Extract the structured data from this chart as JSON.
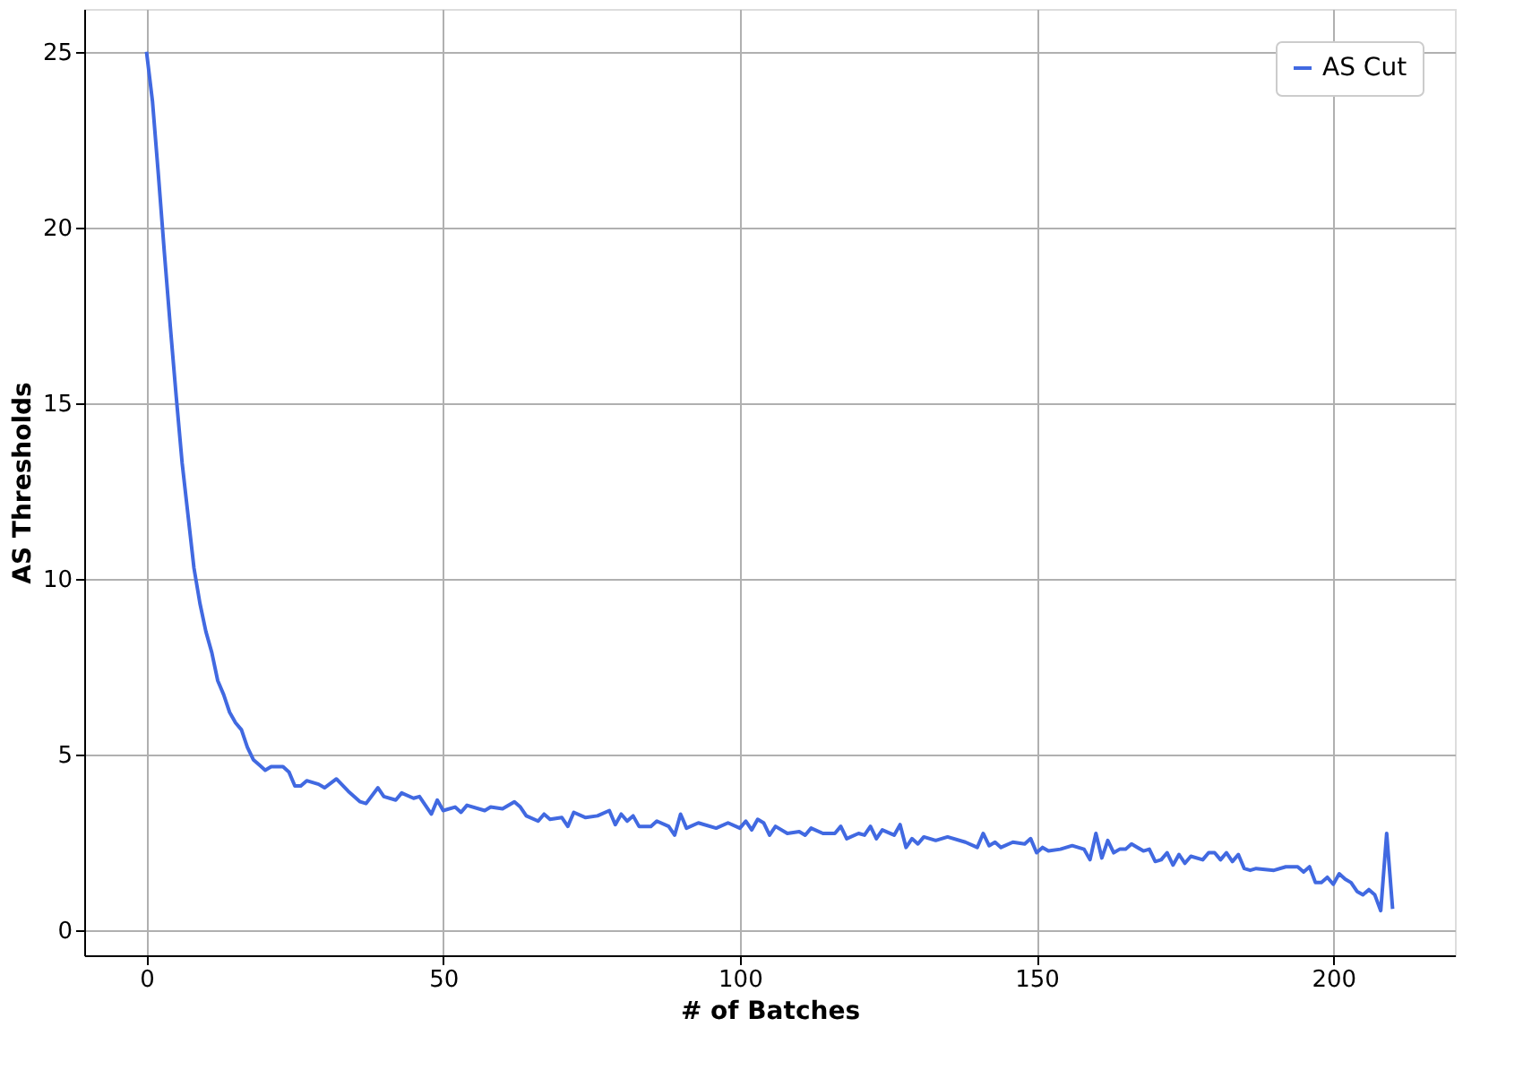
{
  "chart_data": {
    "type": "line",
    "xlabel": "# of Batches",
    "ylabel": "AS Thresholds",
    "xlim": [
      -10.5,
      220.5
    ],
    "ylim": [
      -0.72,
      26.22
    ],
    "xticks": [
      0,
      50,
      100,
      150,
      200
    ],
    "yticks": [
      0,
      5,
      10,
      15,
      20,
      25
    ],
    "grid": true,
    "legend": "top right",
    "line_style": "solid",
    "series": [
      {
        "name": "AS Cut",
        "color": "#4169e1",
        "x": [
          0,
          1,
          2,
          3,
          4,
          5,
          6,
          7,
          8,
          9,
          10,
          11,
          12,
          13,
          14,
          15,
          16,
          17,
          18,
          19,
          20,
          21,
          23,
          24,
          25,
          26,
          27,
          29,
          30,
          32,
          34,
          36,
          37,
          39,
          40,
          42,
          43,
          45,
          46,
          48,
          49,
          50,
          52,
          53,
          54,
          57,
          58,
          60,
          62,
          63,
          64,
          66,
          67,
          68,
          70,
          71,
          72,
          74,
          76,
          78,
          79,
          80,
          81,
          82,
          83,
          85,
          86,
          88,
          89,
          90,
          91,
          93,
          96,
          98,
          100,
          101,
          102,
          103,
          104,
          105,
          106,
          108,
          110,
          111,
          112,
          114,
          116,
          117,
          118,
          120,
          121,
          122,
          123,
          124,
          126,
          127,
          128,
          129,
          130,
          131,
          133,
          135,
          138,
          140,
          141,
          142,
          143,
          144,
          146,
          148,
          149,
          150,
          151,
          152,
          154,
          156,
          158,
          159,
          160,
          161,
          162,
          163,
          164,
          165,
          166,
          168,
          169,
          170,
          171,
          172,
          173,
          174,
          175,
          176,
          178,
          179,
          180,
          181,
          182,
          183,
          184,
          185,
          186,
          187,
          190,
          192,
          194,
          195,
          196,
          197,
          198,
          199,
          200,
          201,
          202,
          203,
          204,
          205,
          206,
          207,
          208,
          209,
          210
        ],
        "values": [
          25,
          23.6,
          21.5,
          19.3,
          17.2,
          15.2,
          13.3,
          11.8,
          10.3,
          9.3,
          8.5,
          7.9,
          7.1,
          6.7,
          6.2,
          5.9,
          5.7,
          5.2,
          4.85,
          4.7,
          4.55,
          4.65,
          4.65,
          4.5,
          4.1,
          4.1,
          4.25,
          4.15,
          4.05,
          4.3,
          3.95,
          3.65,
          3.6,
          4.05,
          3.8,
          3.7,
          3.9,
          3.75,
          3.8,
          3.3,
          3.7,
          3.4,
          3.5,
          3.35,
          3.55,
          3.4,
          3.5,
          3.45,
          3.65,
          3.5,
          3.25,
          3.1,
          3.3,
          3.15,
          3.2,
          2.95,
          3.35,
          3.2,
          3.25,
          3.4,
          3.0,
          3.3,
          3.1,
          3.25,
          2.95,
          2.95,
          3.1,
          2.95,
          2.7,
          3.3,
          2.9,
          3.05,
          2.9,
          3.05,
          2.9,
          3.1,
          2.85,
          3.15,
          3.05,
          2.7,
          2.95,
          2.75,
          2.8,
          2.7,
          2.9,
          2.75,
          2.75,
          2.95,
          2.6,
          2.75,
          2.7,
          2.95,
          2.6,
          2.85,
          2.7,
          3.0,
          2.35,
          2.6,
          2.45,
          2.65,
          2.55,
          2.65,
          2.5,
          2.35,
          2.75,
          2.4,
          2.5,
          2.35,
          2.5,
          2.45,
          2.6,
          2.2,
          2.35,
          2.25,
          2.3,
          2.4,
          2.3,
          2.0,
          2.75,
          2.05,
          2.55,
          2.2,
          2.3,
          2.3,
          2.45,
          2.25,
          2.3,
          1.95,
          2.0,
          2.2,
          1.85,
          2.15,
          1.9,
          2.1,
          2.0,
          2.2,
          2.2,
          2.0,
          2.2,
          1.95,
          2.15,
          1.75,
          1.7,
          1.75,
          1.7,
          1.8,
          1.8,
          1.65,
          1.8,
          1.35,
          1.35,
          1.5,
          1.3,
          1.6,
          1.45,
          1.35,
          1.1,
          1.0,
          1.15,
          1.0,
          0.55,
          2.75,
          0.6
        ]
      }
    ]
  }
}
